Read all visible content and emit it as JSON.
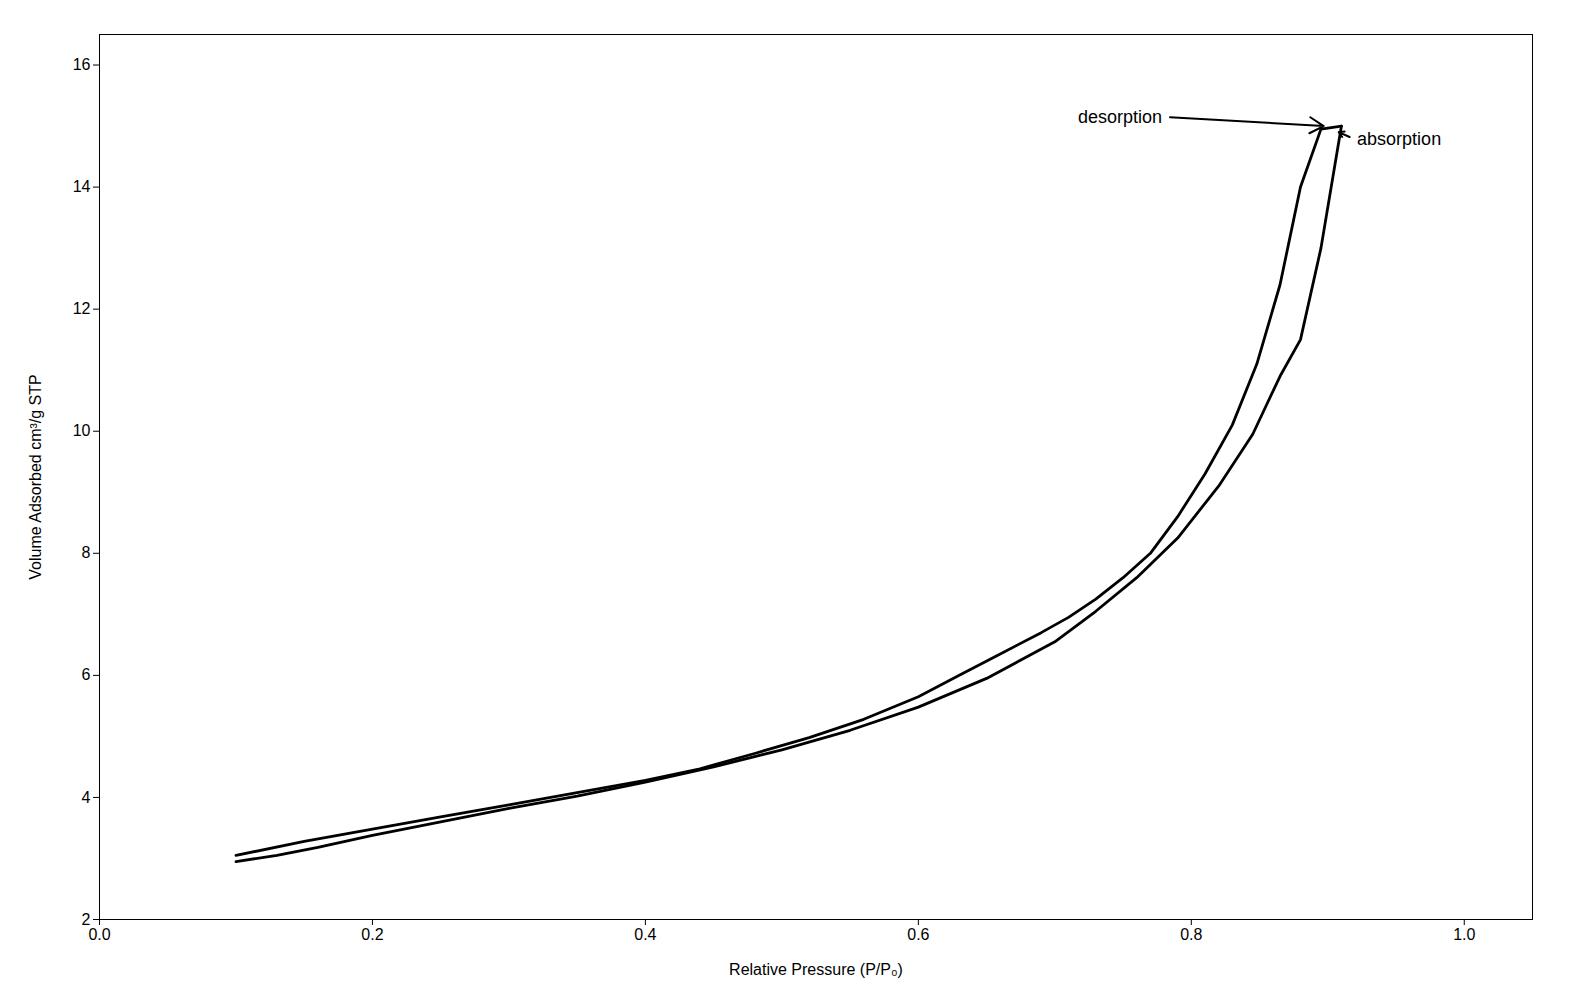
{
  "chart_data": {
    "type": "line",
    "xlabel": "Relative Pressure (P/P₀)",
    "ylabel": "Volume Adsorbed cm³/g STP",
    "xlim": [
      0.0,
      1.05
    ],
    "ylim": [
      2.0,
      16.5
    ],
    "xticks": [
      {
        "value": 0.0,
        "label": "0.0"
      },
      0.2,
      0.4,
      0.6,
      0.8,
      {
        "value": 1.0,
        "label": "1.0"
      }
    ],
    "yticks": [
      2,
      4,
      6,
      8,
      10,
      12,
      14,
      16
    ],
    "grid": false,
    "series": [
      {
        "color": "#000000",
        "x": [
          0.1,
          0.13,
          0.16,
          0.2,
          0.25,
          0.3,
          0.35,
          0.4,
          0.45,
          0.5,
          0.55,
          0.6,
          0.65,
          0.7,
          0.73,
          0.76,
          0.79,
          0.82,
          0.845,
          0.865,
          0.88,
          0.895,
          0.91
        ],
        "values": [
          2.95,
          3.05,
          3.18,
          3.38,
          3.6,
          3.82,
          4.02,
          4.25,
          4.5,
          4.78,
          5.1,
          5.48,
          5.95,
          6.55,
          7.05,
          7.6,
          8.25,
          9.1,
          9.95,
          10.9,
          11.5,
          13.0,
          15.0
        ]
      },
      {
        "color": "#000000",
        "x": [
          0.91,
          0.895,
          0.88,
          0.865,
          0.848,
          0.83,
          0.81,
          0.79,
          0.77,
          0.75,
          0.73,
          0.71,
          0.69,
          0.66,
          0.63,
          0.6,
          0.56,
          0.52,
          0.48,
          0.44,
          0.4,
          0.35,
          0.3,
          0.25,
          0.2,
          0.15,
          0.1
        ],
        "values": [
          15.0,
          14.95,
          14.0,
          12.4,
          11.1,
          10.1,
          9.3,
          8.6,
          8.0,
          7.6,
          7.25,
          6.95,
          6.7,
          6.35,
          6.0,
          5.65,
          5.28,
          4.98,
          4.72,
          4.47,
          4.28,
          4.08,
          3.88,
          3.68,
          3.48,
          3.28,
          3.05
        ]
      }
    ],
    "annotations": [
      {
        "text": "desorption",
        "x": 0.897,
        "y": 15.0,
        "text_x": 0.78,
        "text_y": 15.15
      },
      {
        "text": "absorption",
        "x": 0.908,
        "y": 14.9,
        "text_x": 0.92,
        "text_y": 14.78
      }
    ]
  }
}
